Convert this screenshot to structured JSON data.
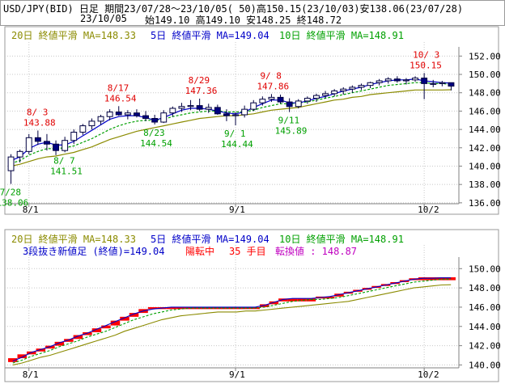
{
  "header": {
    "line1": "USD/JPY(BID) 日足 期間23/07/28～23/10/05( 50)高150.15(23/10/03)安138.06(23/07/28)",
    "date": "23/10/05",
    "ohlc": "始149.10 高149.10 安148.25 終148.72"
  },
  "legend": {
    "ma20": "20日 終値平滑 MA=148.33",
    "ma5": "5日 終値平滑 MA=149.04",
    "ma10": "10日 終値平滑 MA=148.91"
  },
  "lower_info": {
    "title": "3段抜き新値足 (終値)=149.04",
    "state": "陽転中",
    "count": "35 手目",
    "reversal": "転換値 : 148.87"
  },
  "x_labels": [
    "8/1",
    "9/1",
    "10/2"
  ],
  "colors": {
    "up": "#ffffff",
    "down": "#000080",
    "ma5": "#0000c8",
    "ma10": "#00a000",
    "ma20": "#8b8b00",
    "kagi_red": "#ff0000",
    "annot_high": "#e00000",
    "annot_low": "#00a000",
    "grid": "#c8c8c8"
  },
  "chart_data": [
    {
      "type": "candlestick",
      "title": "USD/JPY(BID) 日足",
      "y_ticks": [
        136,
        138,
        140,
        142,
        144,
        146,
        148,
        150,
        152
      ],
      "ylim": [
        135.9,
        153.0
      ],
      "grid": true,
      "x_ticks": [
        {
          "index": 2,
          "label": "8/1"
        },
        {
          "index": 25,
          "label": "9/1"
        },
        {
          "index": 46,
          "label": "10/2"
        }
      ],
      "candles": [
        {
          "o": 139.5,
          "h": 141.3,
          "l": 138.06,
          "c": 141.0
        },
        {
          "o": 141.0,
          "h": 141.8,
          "l": 140.4,
          "c": 141.6
        },
        {
          "o": 141.6,
          "h": 143.5,
          "l": 141.3,
          "c": 143.1
        },
        {
          "o": 143.1,
          "h": 143.88,
          "l": 142.3,
          "c": 142.7
        },
        {
          "o": 142.7,
          "h": 143.5,
          "l": 141.7,
          "c": 142.4
        },
        {
          "o": 142.4,
          "h": 142.8,
          "l": 141.2,
          "c": 141.7
        },
        {
          "o": 141.7,
          "h": 143.2,
          "l": 141.51,
          "c": 142.8
        },
        {
          "o": 142.8,
          "h": 144.0,
          "l": 142.4,
          "c": 143.7
        },
        {
          "o": 143.7,
          "h": 144.6,
          "l": 143.4,
          "c": 144.4
        },
        {
          "o": 144.4,
          "h": 145.2,
          "l": 144.0,
          "c": 144.9
        },
        {
          "o": 144.9,
          "h": 145.6,
          "l": 144.5,
          "c": 145.4
        },
        {
          "o": 145.4,
          "h": 146.2,
          "l": 145.0,
          "c": 145.9
        },
        {
          "o": 145.9,
          "h": 146.54,
          "l": 145.5,
          "c": 145.6
        },
        {
          "o": 145.6,
          "h": 146.1,
          "l": 145.1,
          "c": 145.8
        },
        {
          "o": 145.8,
          "h": 146.2,
          "l": 145.3,
          "c": 145.5
        },
        {
          "o": 145.5,
          "h": 146.0,
          "l": 144.9,
          "c": 145.2
        },
        {
          "o": 145.2,
          "h": 145.6,
          "l": 144.54,
          "c": 144.8
        },
        {
          "o": 144.8,
          "h": 146.1,
          "l": 144.7,
          "c": 145.8
        },
        {
          "o": 145.8,
          "h": 146.5,
          "l": 145.4,
          "c": 146.3
        },
        {
          "o": 146.3,
          "h": 146.9,
          "l": 145.9,
          "c": 146.5
        },
        {
          "o": 146.5,
          "h": 147.2,
          "l": 146.1,
          "c": 146.6
        },
        {
          "o": 146.6,
          "h": 147.36,
          "l": 146.0,
          "c": 146.2
        },
        {
          "o": 146.2,
          "h": 146.8,
          "l": 145.8,
          "c": 146.4
        },
        {
          "o": 146.4,
          "h": 146.7,
          "l": 145.6,
          "c": 145.7
        },
        {
          "o": 145.7,
          "h": 146.2,
          "l": 144.9,
          "c": 145.5
        },
        {
          "o": 145.5,
          "h": 145.9,
          "l": 144.44,
          "c": 145.6
        },
        {
          "o": 145.6,
          "h": 146.6,
          "l": 145.3,
          "c": 146.2
        },
        {
          "o": 146.2,
          "h": 147.2,
          "l": 146.0,
          "c": 146.9
        },
        {
          "o": 146.9,
          "h": 147.6,
          "l": 146.6,
          "c": 147.3
        },
        {
          "o": 147.3,
          "h": 147.86,
          "l": 147.0,
          "c": 147.5
        },
        {
          "o": 147.5,
          "h": 147.8,
          "l": 146.8,
          "c": 147.0
        },
        {
          "o": 147.0,
          "h": 147.4,
          "l": 145.89,
          "c": 146.5
        },
        {
          "o": 146.5,
          "h": 147.3,
          "l": 146.3,
          "c": 147.1
        },
        {
          "o": 147.1,
          "h": 147.6,
          "l": 146.8,
          "c": 147.4
        },
        {
          "o": 147.4,
          "h": 147.9,
          "l": 147.0,
          "c": 147.7
        },
        {
          "o": 147.7,
          "h": 148.2,
          "l": 147.4,
          "c": 147.9
        },
        {
          "o": 147.9,
          "h": 148.4,
          "l": 147.6,
          "c": 148.2
        },
        {
          "o": 148.2,
          "h": 148.6,
          "l": 147.8,
          "c": 148.4
        },
        {
          "o": 148.4,
          "h": 148.8,
          "l": 148.0,
          "c": 148.6
        },
        {
          "o": 148.6,
          "h": 149.0,
          "l": 148.3,
          "c": 148.8
        },
        {
          "o": 148.8,
          "h": 149.2,
          "l": 148.5,
          "c": 149.1
        },
        {
          "o": 149.1,
          "h": 149.5,
          "l": 148.8,
          "c": 149.3
        },
        {
          "o": 149.3,
          "h": 149.7,
          "l": 149.0,
          "c": 149.5
        },
        {
          "o": 149.5,
          "h": 149.8,
          "l": 149.1,
          "c": 149.3
        },
        {
          "o": 149.3,
          "h": 149.6,
          "l": 148.9,
          "c": 149.4
        },
        {
          "o": 149.4,
          "h": 149.8,
          "l": 149.2,
          "c": 149.6
        },
        {
          "o": 149.6,
          "h": 150.15,
          "l": 147.3,
          "c": 149.0
        },
        {
          "o": 149.0,
          "h": 149.4,
          "l": 148.6,
          "c": 149.0
        },
        {
          "o": 149.0,
          "h": 149.3,
          "l": 148.7,
          "c": 149.1
        },
        {
          "o": 149.1,
          "h": 149.1,
          "l": 148.25,
          "c": 148.72
        }
      ],
      "ma": [
        {
          "name": "5日 終値平滑",
          "key": "ma5",
          "values": [
            140.6,
            141.0,
            141.9,
            142.4,
            142.6,
            142.3,
            142.3,
            142.7,
            143.3,
            143.9,
            144.5,
            145.1,
            145.4,
            145.5,
            145.5,
            145.3,
            145.0,
            145.3,
            145.7,
            146.1,
            146.3,
            146.3,
            146.2,
            146.0,
            145.8,
            145.7,
            145.9,
            146.4,
            146.8,
            147.2,
            147.2,
            146.9,
            146.9,
            147.1,
            147.4,
            147.6,
            147.9,
            148.2,
            148.4,
            148.6,
            148.9,
            149.1,
            149.3,
            149.4,
            149.4,
            149.5,
            149.3,
            149.2,
            149.1,
            149.04
          ]
        },
        {
          "name": "10日 終値平滑",
          "key": "ma10",
          "values": [
            140.3,
            140.6,
            141.2,
            141.6,
            141.9,
            141.9,
            142.0,
            142.2,
            142.6,
            143.0,
            143.5,
            144.0,
            144.4,
            144.7,
            144.9,
            145.0,
            145.0,
            145.1,
            145.4,
            145.6,
            145.8,
            145.9,
            146.0,
            146.0,
            145.9,
            145.9,
            145.9,
            146.1,
            146.4,
            146.6,
            146.8,
            146.8,
            146.9,
            147.0,
            147.2,
            147.4,
            147.6,
            147.8,
            148.0,
            148.2,
            148.4,
            148.6,
            148.8,
            148.9,
            149.0,
            149.1,
            149.1,
            149.0,
            149.0,
            148.91
          ]
        },
        {
          "name": "20日 終値平滑",
          "key": "ma20",
          "values": [
            140.0,
            140.2,
            140.5,
            140.8,
            141.0,
            141.1,
            141.3,
            141.5,
            141.8,
            142.1,
            142.5,
            142.9,
            143.2,
            143.5,
            143.8,
            144.0,
            144.2,
            144.4,
            144.6,
            144.8,
            145.0,
            145.2,
            145.3,
            145.4,
            145.5,
            145.5,
            145.6,
            145.7,
            145.9,
            146.1,
            146.2,
            146.3,
            146.4,
            146.6,
            146.8,
            147.0,
            147.2,
            147.3,
            147.5,
            147.6,
            147.8,
            147.9,
            148.0,
            148.1,
            148.2,
            148.3,
            148.3,
            148.3,
            148.3,
            148.33
          ]
        }
      ],
      "annotations": [
        {
          "index": 0,
          "value": "7/28",
          "value2": "138.06",
          "kind": "low"
        },
        {
          "index": 3,
          "value": "8/ 3",
          "value2": "143.88",
          "kind": "high"
        },
        {
          "index": 6,
          "value": "8/ 7",
          "value2": "141.51",
          "kind": "low"
        },
        {
          "index": 12,
          "value": "8/17",
          "value2": "146.54",
          "kind": "high"
        },
        {
          "index": 16,
          "value": "8/23",
          "value2": "144.54",
          "kind": "low"
        },
        {
          "index": 21,
          "value": "8/29",
          "value2": "147.36",
          "kind": "high"
        },
        {
          "index": 25,
          "value": "9/ 1",
          "value2": "144.44",
          "kind": "low"
        },
        {
          "index": 29,
          "value": "9/ 8",
          "value2": "147.86",
          "kind": "high"
        },
        {
          "index": 31,
          "value": "9/11",
          "value2": "145.89",
          "kind": "low"
        },
        {
          "index": 46,
          "value": "10/ 3",
          "value2": "150.15",
          "kind": "high"
        }
      ]
    },
    {
      "type": "new-price-line",
      "title": "3段抜き新値足 (終値)=149.04",
      "y_ticks": [
        140,
        142,
        144,
        146,
        148,
        150
      ],
      "ylim": [
        139.7,
        151.2
      ],
      "grid": true,
      "bricks": [
        {
          "b": 140.3,
          "t": 140.7
        },
        {
          "b": 140.7,
          "t": 141.1
        },
        {
          "b": 141.1,
          "t": 141.4
        },
        {
          "b": 141.4,
          "t": 141.7
        },
        {
          "b": 141.7,
          "t": 142.0
        },
        {
          "b": 142.0,
          "t": 142.4
        },
        {
          "b": 142.4,
          "t": 142.7
        },
        {
          "b": 142.7,
          "t": 143.1
        },
        {
          "b": 143.1,
          "t": 143.4
        },
        {
          "b": 143.4,
          "t": 143.8
        },
        {
          "b": 143.8,
          "t": 144.1
        },
        {
          "b": 144.1,
          "t": 144.6
        },
        {
          "b": 144.6,
          "t": 145.0
        },
        {
          "b": 145.0,
          "t": 145.4
        },
        {
          "b": 145.4,
          "t": 145.8
        },
        {
          "b": 145.8,
          "t": 146.0
        },
        {
          "b": 145.8,
          "t": 146.0
        },
        {
          "b": 145.8,
          "t": 146.0
        },
        {
          "b": 145.8,
          "t": 146.0
        },
        {
          "b": 145.8,
          "t": 146.0
        },
        {
          "b": 145.8,
          "t": 146.0
        },
        {
          "b": 145.8,
          "t": 146.0
        },
        {
          "b": 145.8,
          "t": 146.0
        },
        {
          "b": 145.8,
          "t": 146.0
        },
        {
          "b": 145.8,
          "t": 146.0
        },
        {
          "b": 145.8,
          "t": 146.0
        },
        {
          "b": 145.8,
          "t": 146.0
        },
        {
          "b": 146.0,
          "t": 146.3
        },
        {
          "b": 146.3,
          "t": 146.6
        },
        {
          "b": 146.6,
          "t": 146.9
        },
        {
          "b": 146.6,
          "t": 146.9
        },
        {
          "b": 146.6,
          "t": 146.9
        },
        {
          "b": 146.6,
          "t": 146.9
        },
        {
          "b": 146.9,
          "t": 147.1
        },
        {
          "b": 146.9,
          "t": 147.1
        },
        {
          "b": 147.1,
          "t": 147.4
        },
        {
          "b": 147.4,
          "t": 147.6
        },
        {
          "b": 147.6,
          "t": 147.8
        },
        {
          "b": 147.8,
          "t": 148.0
        },
        {
          "b": 148.0,
          "t": 148.2
        },
        {
          "b": 148.2,
          "t": 148.4
        },
        {
          "b": 148.4,
          "t": 148.6
        },
        {
          "b": 148.6,
          "t": 148.8
        },
        {
          "b": 148.8,
          "t": 149.0
        },
        {
          "b": 148.8,
          "t": 149.1
        },
        {
          "b": 148.8,
          "t": 149.1
        },
        {
          "b": 148.8,
          "t": 149.1
        },
        {
          "b": 148.8,
          "t": 149.1
        }
      ],
      "ma": [
        {
          "name": "5日 終値平滑",
          "key": "ma5",
          "values": [
            140.4,
            140.8,
            141.3,
            141.6,
            141.9,
            142.3,
            142.6,
            143.0,
            143.3,
            143.7,
            144.1,
            144.5,
            144.9,
            145.3,
            145.6,
            145.8,
            145.9,
            146.0,
            146.0,
            146.0,
            146.0,
            146.0,
            146.0,
            146.0,
            146.0,
            146.0,
            146.0,
            146.2,
            146.5,
            146.8,
            146.9,
            146.9,
            146.9,
            147.0,
            147.1,
            147.3,
            147.5,
            147.7,
            147.9,
            148.1,
            148.3,
            148.5,
            148.7,
            148.9,
            149.0,
            149.0,
            149.04,
            149.04
          ]
        },
        {
          "name": "10日 終値平滑",
          "key": "ma10",
          "values": [
            140.2,
            140.5,
            140.9,
            141.2,
            141.5,
            141.9,
            142.2,
            142.5,
            142.9,
            143.2,
            143.5,
            143.9,
            144.3,
            144.7,
            145.0,
            145.3,
            145.5,
            145.7,
            145.8,
            145.9,
            145.9,
            145.9,
            145.9,
            145.9,
            145.9,
            145.9,
            145.9,
            146.0,
            146.2,
            146.4,
            146.6,
            146.7,
            146.8,
            146.8,
            146.9,
            147.0,
            147.2,
            147.4,
            147.6,
            147.8,
            148.0,
            148.2,
            148.4,
            148.6,
            148.7,
            148.8,
            148.9,
            148.91
          ]
        },
        {
          "name": "20日 終値平滑",
          "key": "ma20",
          "values": [
            140.0,
            140.2,
            140.5,
            140.8,
            141.0,
            141.3,
            141.6,
            141.9,
            142.2,
            142.5,
            142.8,
            143.1,
            143.5,
            143.8,
            144.1,
            144.4,
            144.7,
            144.9,
            145.1,
            145.2,
            145.3,
            145.4,
            145.5,
            145.5,
            145.5,
            145.6,
            145.6,
            145.7,
            145.8,
            145.9,
            146.0,
            146.1,
            146.2,
            146.3,
            146.4,
            146.5,
            146.6,
            146.8,
            147.0,
            147.2,
            147.4,
            147.6,
            147.8,
            148.0,
            148.1,
            148.2,
            148.3,
            148.33
          ]
        }
      ]
    }
  ]
}
